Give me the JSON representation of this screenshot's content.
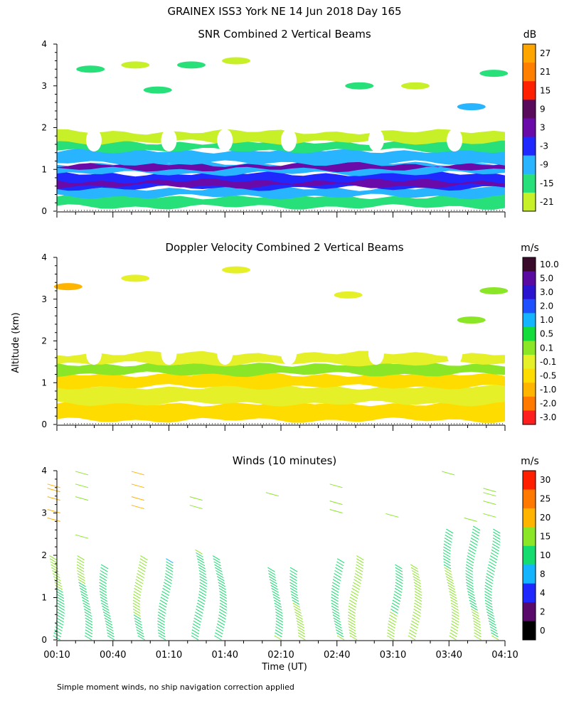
{
  "page": {
    "title": "GRAINEX ISS3 York NE  14 Jun 2018 Day 165",
    "y_axis_label": "Altitude (km)",
    "x_axis_label": "Time (UT)",
    "footnote": "Simple moment winds, no ship navigation correction applied"
  },
  "chart_data": [
    {
      "id": "snr",
      "type": "heatmap",
      "title": "SNR Combined 2 Vertical Beams",
      "units": "dB",
      "ylim": [
        0,
        4
      ],
      "yticks": [
        "0",
        "1",
        "2",
        "3",
        "4"
      ],
      "colorbar": {
        "labels": [
          "27",
          "21",
          "15",
          "9",
          "3",
          "-3",
          "-9",
          "-15",
          "-21"
        ],
        "colors": [
          "#ffa500",
          "#ff7f00",
          "#ff2000",
          "#5a0a5a",
          "#6a0aa8",
          "#1e28ff",
          "#28b4ff",
          "#28e07a",
          "#c8f028"
        ]
      },
      "bands": [
        {
          "from": 0.1,
          "to": 0.35,
          "level": "-15"
        },
        {
          "from": 0.35,
          "to": 0.55,
          "level": "-9"
        },
        {
          "from": 0.55,
          "to": 0.9,
          "level": "-3"
        },
        {
          "from": 0.6,
          "to": 0.72,
          "level": "3"
        },
        {
          "from": 0.9,
          "to": 1.15,
          "level": "-9"
        },
        {
          "from": 1.0,
          "to": 1.12,
          "level": "3"
        },
        {
          "from": 1.15,
          "to": 1.45,
          "level": "-9"
        },
        {
          "from": 1.45,
          "to": 1.65,
          "level": "-15"
        },
        {
          "from": 1.65,
          "to": 1.9,
          "level": "-21"
        }
      ],
      "upper_patches": [
        {
          "t": 0.3,
          "alt": 3.4,
          "level": "-15"
        },
        {
          "t": 0.7,
          "alt": 3.5,
          "level": "-21"
        },
        {
          "t": 1.2,
          "alt": 3.5,
          "level": "-15"
        },
        {
          "t": 1.6,
          "alt": 3.6,
          "level": "-21"
        },
        {
          "t": 0.9,
          "alt": 2.9,
          "level": "-15"
        },
        {
          "t": 2.7,
          "alt": 3.0,
          "level": "-15"
        },
        {
          "t": 3.2,
          "alt": 3.0,
          "level": "-21"
        },
        {
          "t": 3.7,
          "alt": 2.5,
          "level": "-9"
        },
        {
          "t": 3.9,
          "alt": 3.3,
          "level": "-15"
        }
      ]
    },
    {
      "id": "doppler",
      "type": "heatmap",
      "title": "Doppler Velocity Combined 2 Vertical Beams",
      "units": "m/s",
      "ylim": [
        0,
        4
      ],
      "yticks": [
        "0",
        "1",
        "2",
        "3",
        "4"
      ],
      "colorbar": {
        "labels": [
          "10.0",
          "5.0",
          "3.0",
          "2.0",
          "1.0",
          "0.5",
          "0.1",
          "-0.1",
          "-0.5",
          "-1.0",
          "-2.0",
          "-3.0"
        ],
        "colors": [
          "#3a0a2a",
          "#5a0aa0",
          "#2a14d0",
          "#1e50ff",
          "#14b4ff",
          "#14dc3c",
          "#8ce628",
          "#e6f028",
          "#ffdc00",
          "#ffb400",
          "#ff7800",
          "#ff1e1e"
        ]
      },
      "bands": [
        {
          "from": 0.1,
          "to": 0.5,
          "level": "-0.5"
        },
        {
          "from": 0.5,
          "to": 0.9,
          "level": "-0.1"
        },
        {
          "from": 0.9,
          "to": 1.2,
          "level": "-0.5"
        },
        {
          "from": 1.2,
          "to": 1.45,
          "level": "0.1"
        },
        {
          "from": 1.45,
          "to": 1.7,
          "level": "-0.1"
        }
      ],
      "upper_patches": [
        {
          "t": 0.1,
          "alt": 3.3,
          "level": "-1.0"
        },
        {
          "t": 0.7,
          "alt": 3.5,
          "level": "-0.1"
        },
        {
          "t": 1.6,
          "alt": 3.7,
          "level": "-0.1"
        },
        {
          "t": 2.6,
          "alt": 3.1,
          "level": "-0.1"
        },
        {
          "t": 3.7,
          "alt": 2.5,
          "level": "0.1"
        },
        {
          "t": 3.9,
          "alt": 3.2,
          "level": "0.1"
        }
      ]
    },
    {
      "id": "winds",
      "type": "wind-barbs",
      "title": "Winds (10 minutes)",
      "units": "m/s",
      "ylim": [
        0,
        4
      ],
      "yticks": [
        "0",
        "1",
        "2",
        "3",
        "4"
      ],
      "colorbar": {
        "labels": [
          "30",
          "25",
          "20",
          "15",
          "10",
          "8",
          "4",
          "2",
          "0"
        ],
        "colors": [
          "#ff1e00",
          "#ff7800",
          "#ffb400",
          "#8ce628",
          "#14dc6e",
          "#14b4ff",
          "#1e28ff",
          "#5a0a6a",
          "#000000"
        ]
      },
      "profiles": [
        {
          "t": 0.03,
          "low_speed": 12,
          "high_speed": 17,
          "top": 1.9,
          "upper": [
            2.8,
            3.0,
            3.3,
            3.5,
            3.6
          ]
        },
        {
          "t": 0.28,
          "low_speed": 13,
          "high_speed": 16,
          "top": 1.9,
          "upper": [
            2.4,
            3.3,
            3.6,
            3.9
          ]
        },
        {
          "t": 0.48,
          "low_speed": 14,
          "high_speed": 10,
          "top": 1.7,
          "upper": []
        },
        {
          "t": 0.78,
          "low_speed": 13,
          "high_speed": 20,
          "top": 1.9,
          "upper": [
            3.1,
            3.3,
            3.6,
            3.9
          ]
        },
        {
          "t": 1.0,
          "low_speed": 14,
          "high_speed": 10,
          "top": 1.8,
          "upper": []
        },
        {
          "t": 1.3,
          "low_speed": 13,
          "high_speed": 15,
          "top": 2.0,
          "upper": [
            3.1,
            3.3
          ]
        },
        {
          "t": 1.48,
          "low_speed": 14,
          "high_speed": 10,
          "top": 1.9,
          "upper": []
        },
        {
          "t": 1.98,
          "low_speed": 15,
          "high_speed": 12,
          "top": 1.6,
          "upper": [
            3.4
          ]
        },
        {
          "t": 2.18,
          "low_speed": 16,
          "high_speed": 14,
          "top": 1.6,
          "upper": []
        },
        {
          "t": 2.55,
          "low_speed": 15,
          "high_speed": 12,
          "top": 1.8,
          "upper": [
            3.0,
            3.2,
            3.6
          ]
        },
        {
          "t": 2.7,
          "low_speed": 17,
          "high_speed": 15,
          "top": 1.9,
          "upper": []
        },
        {
          "t": 3.05,
          "low_speed": 16,
          "high_speed": 13,
          "top": 1.7,
          "upper": [
            2.9
          ]
        },
        {
          "t": 3.22,
          "low_speed": 17,
          "high_speed": 15,
          "top": 1.7,
          "upper": []
        },
        {
          "t": 3.55,
          "low_speed": 17,
          "high_speed": 14,
          "top": 2.5,
          "upper": [
            3.9
          ]
        },
        {
          "t": 3.75,
          "low_speed": 16,
          "high_speed": 12,
          "top": 2.6,
          "upper": [
            2.8
          ]
        },
        {
          "t": 3.92,
          "low_speed": 15,
          "high_speed": 13,
          "top": 2.5,
          "upper": [
            2.9,
            3.2,
            3.4,
            3.5
          ]
        }
      ]
    }
  ],
  "time_axis": {
    "start_hours": 0.1667,
    "end_hours": 4.1667,
    "tick_labels": [
      "00:10",
      "00:40",
      "01:10",
      "01:40",
      "02:10",
      "02:40",
      "03:10",
      "03:40",
      "04:10"
    ]
  }
}
